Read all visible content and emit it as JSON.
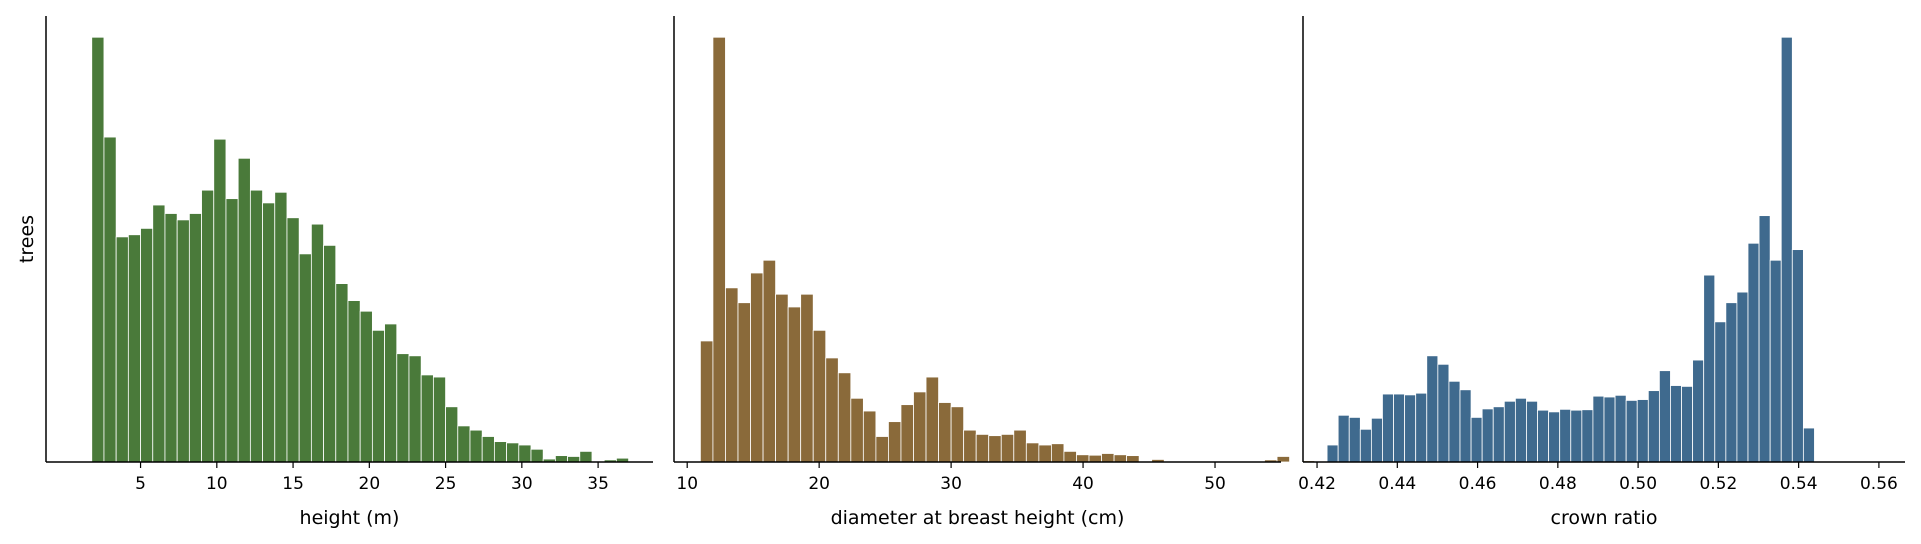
{
  "chart_data": [
    {
      "type": "bar",
      "xlabel": "height (m)",
      "ylabel": "trees",
      "color": "#4a7a3a",
      "xlim": [
        -1.2,
        38.6
      ],
      "xticks": [
        5,
        10,
        15,
        20,
        25,
        30,
        35
      ],
      "ylim": [
        0,
        1.05
      ],
      "bin_start": 1.8,
      "bin_width": 0.8,
      "values": [
        1.0,
        0.765,
        0.53,
        0.535,
        0.55,
        0.605,
        0.585,
        0.57,
        0.585,
        0.64,
        0.76,
        0.62,
        0.715,
        0.64,
        0.61,
        0.635,
        0.575,
        0.49,
        0.56,
        0.51,
        0.42,
        0.38,
        0.355,
        0.31,
        0.325,
        0.255,
        0.25,
        0.205,
        0.2,
        0.13,
        0.085,
        0.075,
        0.06,
        0.048,
        0.045,
        0.04,
        0.03,
        0.007,
        0.015,
        0.013,
        0.025,
        0.0,
        0.005,
        0.009,
        0.0
      ]
    },
    {
      "type": "bar",
      "xlabel": "diameter at breast height (cm)",
      "ylabel": "",
      "color": "#8a6a3a",
      "xlim": [
        9.0,
        55.0
      ],
      "xticks": [
        10,
        20,
        30,
        40,
        50
      ],
      "ylim": [
        0,
        1.05
      ],
      "bin_start": 11.0,
      "bin_width": 0.95,
      "values": [
        0.285,
        1.0,
        0.41,
        0.375,
        0.445,
        0.475,
        0.395,
        0.365,
        0.395,
        0.31,
        0.245,
        0.21,
        0.15,
        0.12,
        0.06,
        0.095,
        0.135,
        0.165,
        0.2,
        0.14,
        0.13,
        0.075,
        0.065,
        0.062,
        0.065,
        0.075,
        0.045,
        0.04,
        0.043,
        0.025,
        0.017,
        0.016,
        0.02,
        0.017,
        0.015,
        0.0,
        0.006,
        0.0,
        0.0,
        0.0,
        0.0,
        0.0,
        0.0,
        0.0,
        0.0,
        0.005,
        0.013,
        0.0,
        0.003,
        0.0
      ]
    },
    {
      "type": "bar",
      "xlabel": "crown ratio",
      "ylabel": "",
      "color": "#3f6a8e",
      "xlim": [
        0.4165,
        0.5665
      ],
      "xticks": [
        "0.42",
        "0.44",
        "0.46",
        "0.48",
        "0.50",
        "0.52",
        "0.54",
        "0.56"
      ],
      "ylim": [
        0,
        1.05
      ],
      "bin_start": 0.4225,
      "bin_width": 0.00276,
      "values": [
        0.04,
        0.11,
        0.105,
        0.077,
        0.103,
        0.16,
        0.16,
        0.158,
        0.162,
        0.25,
        0.23,
        0.19,
        0.17,
        0.105,
        0.125,
        0.13,
        0.143,
        0.15,
        0.143,
        0.122,
        0.118,
        0.124,
        0.122,
        0.123,
        0.155,
        0.153,
        0.157,
        0.145,
        0.147,
        0.168,
        0.215,
        0.18,
        0.178,
        0.24,
        0.44,
        0.33,
        0.375,
        0.4,
        0.515,
        0.58,
        0.475,
        1.0,
        0.5,
        0.08
      ]
    }
  ]
}
